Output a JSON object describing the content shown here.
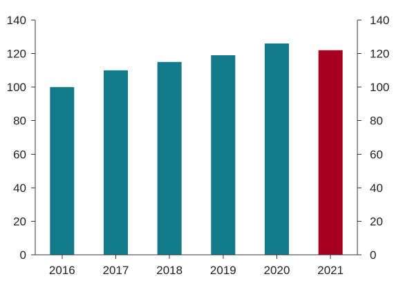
{
  "chart_data": {
    "type": "bar",
    "categories": [
      "2016",
      "2017",
      "2018",
      "2019",
      "2020",
      "2021"
    ],
    "values": [
      100,
      110,
      115,
      119,
      126,
      122
    ],
    "colors": [
      "#127a8a",
      "#127a8a",
      "#127a8a",
      "#127a8a",
      "#127a8a",
      "#a6001e"
    ],
    "ylim": [
      0,
      140
    ],
    "yticks": [
      0,
      20,
      40,
      60,
      80,
      100,
      120,
      140
    ],
    "title": "",
    "xlabel": "",
    "ylabel": "",
    "secondary_y_axis": true,
    "grid": false,
    "legend": "none"
  }
}
